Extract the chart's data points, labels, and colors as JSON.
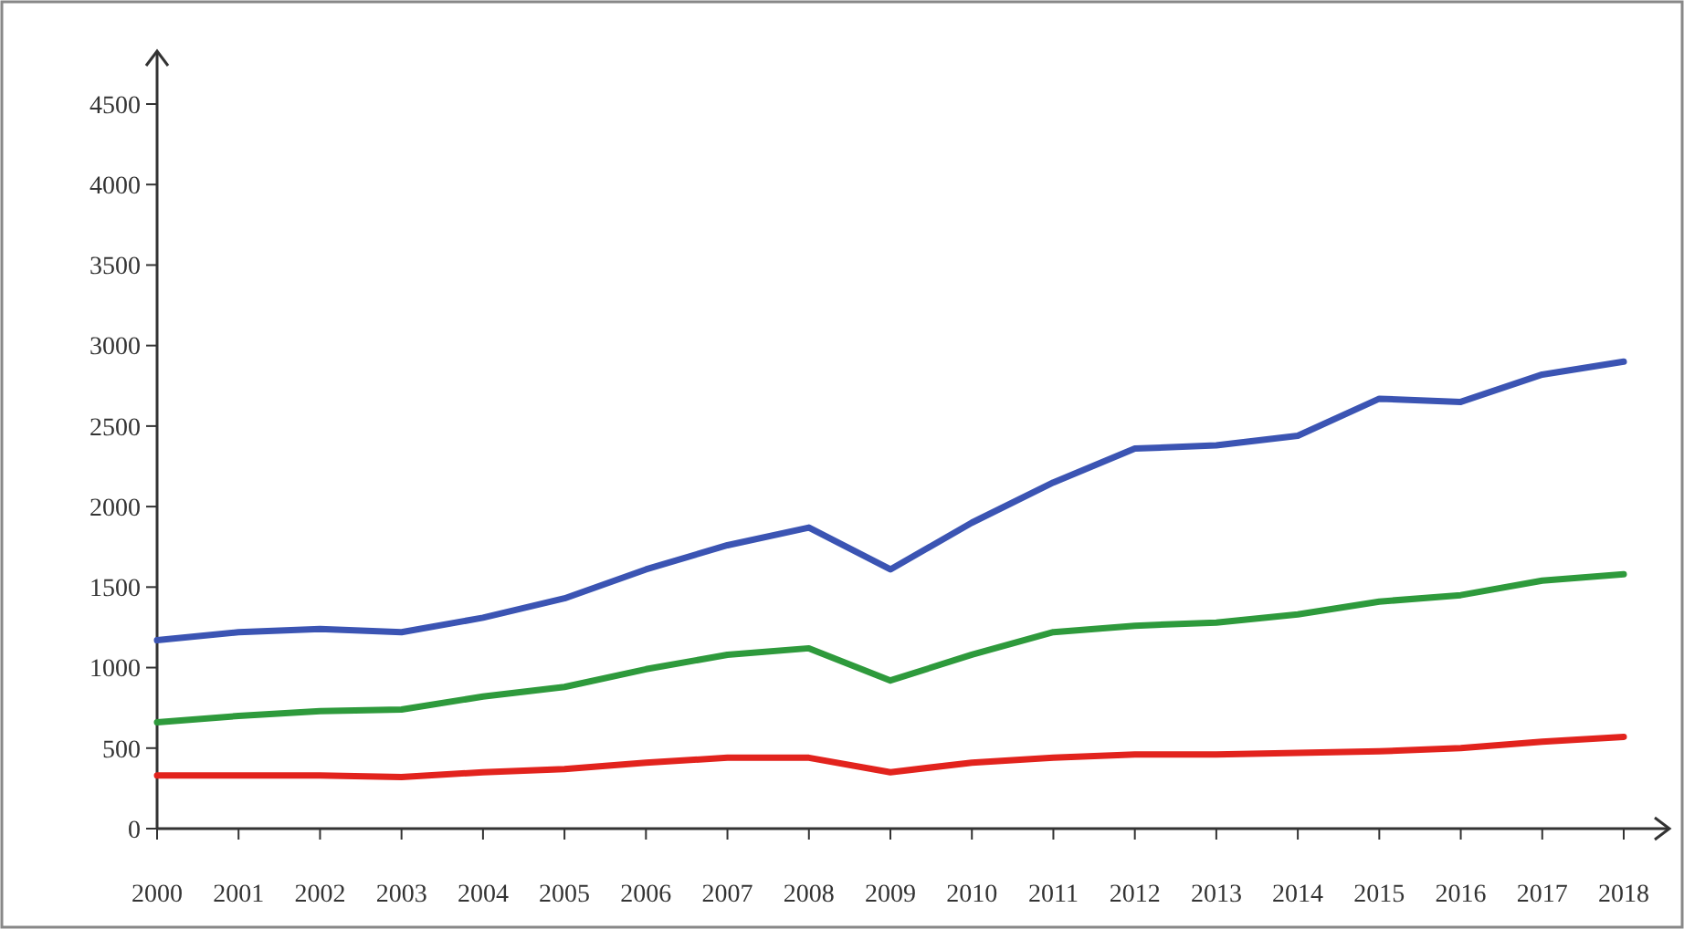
{
  "chart_data": {
    "type": "line",
    "x": [
      2000,
      2001,
      2002,
      2003,
      2004,
      2005,
      2006,
      2007,
      2008,
      2009,
      2010,
      2011,
      2012,
      2013,
      2014,
      2015,
      2016,
      2017,
      2018
    ],
    "xlim": [
      2000,
      2018
    ],
    "xticks": [
      2000,
      2001,
      2002,
      2003,
      2004,
      2005,
      2006,
      2007,
      2008,
      2009,
      2010,
      2011,
      2012,
      2013,
      2014,
      2015,
      2016,
      2017,
      2018
    ],
    "ylim": [
      0,
      4500
    ],
    "yticks": [
      0,
      500,
      1000,
      1500,
      2000,
      2500,
      3000,
      3500,
      4000,
      4500
    ],
    "grid": false,
    "marker": "none",
    "line_style": "solid",
    "series": [
      {
        "color": "#3b54b3",
        "values": [
          1170,
          1220,
          1240,
          1220,
          1310,
          1430,
          1610,
          1760,
          1870,
          1610,
          1900,
          2150,
          2360,
          2380,
          2440,
          2670,
          2650,
          2820,
          2900
        ]
      },
      {
        "color": "#2e9a3c",
        "values": [
          660,
          700,
          730,
          740,
          820,
          880,
          990,
          1080,
          1120,
          920,
          1080,
          1220,
          1260,
          1280,
          1330,
          1410,
          1450,
          1540,
          1580
        ]
      },
      {
        "color": "#e2231d",
        "values": [
          330,
          330,
          330,
          320,
          350,
          370,
          410,
          440,
          440,
          350,
          410,
          440,
          460,
          460,
          470,
          480,
          500,
          540,
          570
        ]
      }
    ]
  }
}
